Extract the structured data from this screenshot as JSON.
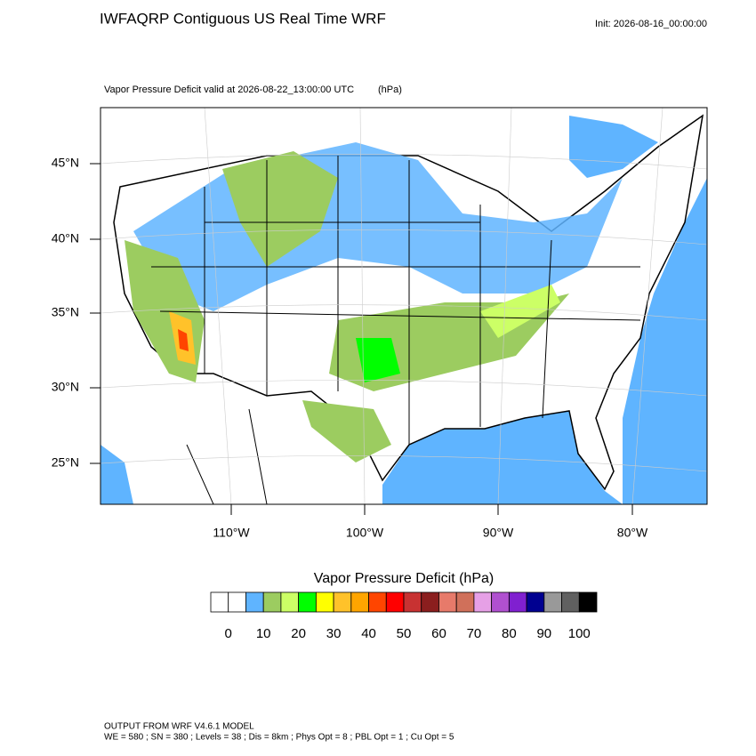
{
  "header": {
    "title": "IWFAQRP Contiguous US Real Time WRF",
    "init": "Init: 2026-08-16_00:00:00"
  },
  "map": {
    "subtitle": "Vapor Pressure Deficit valid at 2026-08-22_13:00:00 UTC",
    "units": "(hPa)",
    "lat_labels": [
      "45°N",
      "40°N",
      "35°N",
      "30°N",
      "25°N"
    ],
    "lon_labels": [
      "110°W",
      "100°W",
      "90°W",
      "80°W"
    ]
  },
  "colorbar": {
    "title": "Vapor Pressure Deficit  (hPa)",
    "colors": [
      "#ffffff",
      "#ffffff",
      "#5fb4ff",
      "#9ccc60",
      "#ccff66",
      "#00ff00",
      "#ffff00",
      "#ffc22a",
      "#ffa500",
      "#ff4500",
      "#ff0000",
      "#c83232",
      "#8b1e1e",
      "#e77a6a",
      "#d0705a",
      "#e6a0e6",
      "#b050d0",
      "#8020d0",
      "#000090",
      "#999999",
      "#606060",
      "#000000"
    ],
    "labels": [
      0,
      10,
      20,
      30,
      40,
      50,
      60,
      70,
      80,
      90,
      100
    ]
  },
  "footer": {
    "line1": "OUTPUT FROM WRF V4.6.1 MODEL",
    "line2": "WE = 580 ; SN = 380 ; Levels = 38 ; Dis = 8km ; Phys Opt = 8 ; PBL Opt = 1 ; Cu Opt = 5"
  }
}
